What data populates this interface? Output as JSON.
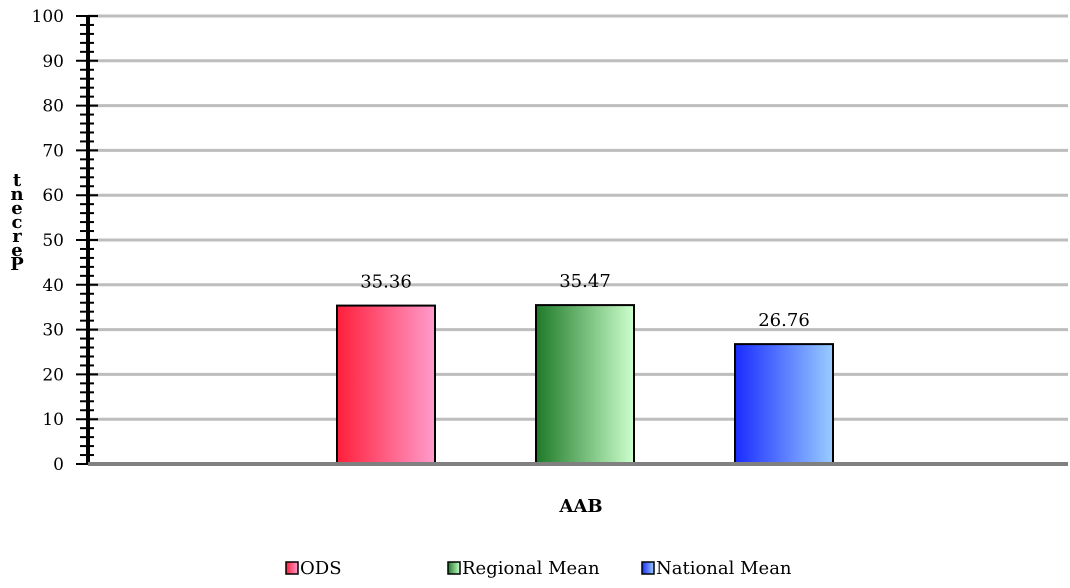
{
  "chart_data": {
    "type": "bar",
    "categories": [
      "AAB"
    ],
    "series": [
      {
        "name": "ODS",
        "values": [
          35.36
        ],
        "color_start": "#ff1f3a",
        "color_end": "#ff9ccc"
      },
      {
        "name": "Regional Mean",
        "values": [
          35.47
        ],
        "color_start": "#1e7a28",
        "color_end": "#ccffcc"
      },
      {
        "name": "National Mean",
        "values": [
          26.76
        ],
        "color_start": "#1a2cff",
        "color_end": "#99ccff"
      }
    ],
    "data_labels": [
      "35.36",
      "35.47",
      "26.76"
    ],
    "xlabel": "AAB",
    "ylabel": "Percent",
    "ylim": [
      0,
      100
    ],
    "yticks": [
      "0",
      "10",
      "20",
      "30",
      "40",
      "50",
      "60",
      "70",
      "80",
      "90",
      "100"
    ],
    "grid": true,
    "legend_position": "bottom"
  }
}
